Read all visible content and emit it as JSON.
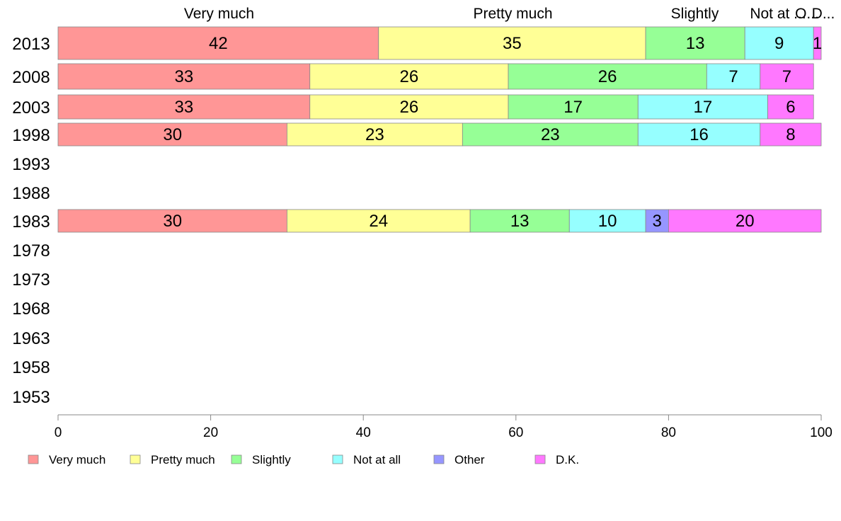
{
  "chart_data": {
    "type": "bar",
    "orientation": "horizontal",
    "stacked": true,
    "categories": [
      "2013",
      "2008",
      "2003",
      "1998",
      "1993",
      "1988",
      "1983",
      "1978",
      "1973",
      "1968",
      "1963",
      "1958",
      "1953"
    ],
    "series": [
      {
        "name": "Very much",
        "color": "#ff9696",
        "values": [
          42,
          33,
          33,
          30,
          null,
          null,
          30,
          null,
          null,
          null,
          null,
          null,
          null
        ]
      },
      {
        "name": "Pretty much",
        "color": "#ffff96",
        "values": [
          35,
          26,
          26,
          23,
          null,
          null,
          24,
          null,
          null,
          null,
          null,
          null,
          null
        ]
      },
      {
        "name": "Slightly",
        "color": "#96ff96",
        "values": [
          13,
          26,
          17,
          23,
          null,
          null,
          13,
          null,
          null,
          null,
          null,
          null,
          null
        ]
      },
      {
        "name": "Not at all",
        "color": "#96ffff",
        "values": [
          9,
          7,
          17,
          16,
          null,
          null,
          10,
          null,
          null,
          null,
          null,
          null,
          null
        ]
      },
      {
        "name": "Other",
        "color": "#9696ff",
        "values": [
          0,
          0,
          0,
          0,
          null,
          null,
          3,
          null,
          null,
          null,
          null,
          null,
          null
        ]
      },
      {
        "name": "D.K.",
        "color": "#ff78ff",
        "values": [
          1,
          7,
          6,
          8,
          null,
          null,
          20,
          null,
          null,
          null,
          null,
          null,
          null
        ]
      }
    ],
    "top_labels": [
      "Very much",
      "Pretty much",
      "Slightly",
      "Not at ...",
      "O...",
      "D..."
    ],
    "xlim": [
      0,
      100
    ],
    "xticks": [
      0,
      20,
      40,
      60,
      80,
      100
    ],
    "grid": false,
    "legend_position": "bottom"
  }
}
